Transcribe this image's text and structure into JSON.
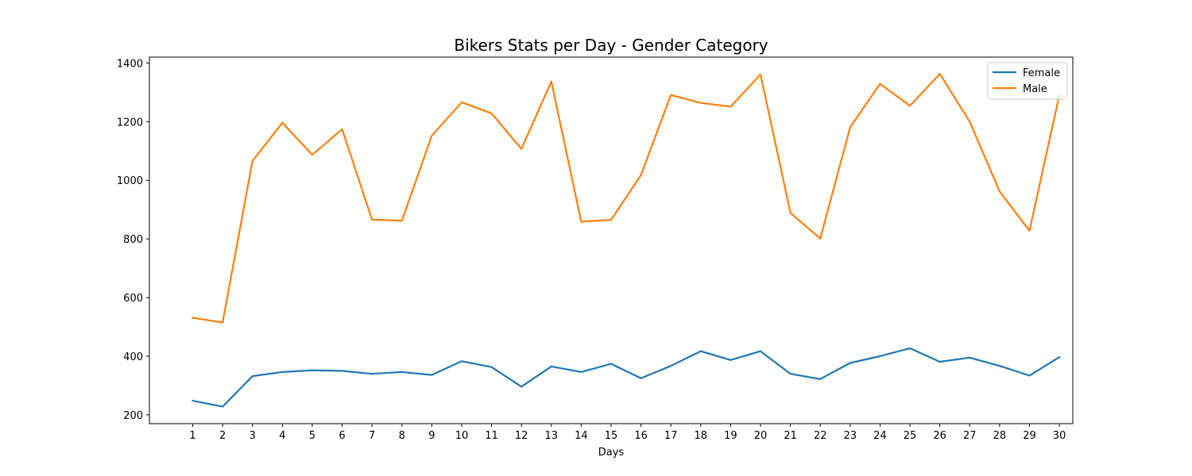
{
  "chart_data": {
    "type": "line",
    "title": "Bikers Stats per Day - Gender Category",
    "xlabel": "Days",
    "ylabel": "",
    "x": [
      1,
      2,
      3,
      4,
      5,
      6,
      7,
      8,
      9,
      10,
      11,
      12,
      13,
      14,
      15,
      16,
      17,
      18,
      19,
      20,
      21,
      22,
      23,
      24,
      25,
      26,
      27,
      28,
      29,
      30
    ],
    "xticks": [
      "1",
      "2",
      "3",
      "4",
      "5",
      "6",
      "7",
      "8",
      "9",
      "10",
      "11",
      "12",
      "13",
      "14",
      "15",
      "16",
      "17",
      "18",
      "19",
      "20",
      "21",
      "22",
      "23",
      "24",
      "25",
      "26",
      "27",
      "28",
      "29",
      "30"
    ],
    "yticks": [
      200,
      400,
      600,
      800,
      1000,
      1200,
      1400
    ],
    "xlim": [
      -0.45,
      30.45
    ],
    "ylim": [
      170,
      1420
    ],
    "grid": false,
    "legend_position": "top-right",
    "series": [
      {
        "name": "Female",
        "color": "#1f77b4",
        "values": [
          248,
          228,
          332,
          346,
          352,
          350,
          340,
          346,
          336,
          383,
          363,
          296,
          365,
          346,
          374,
          325,
          367,
          417,
          387,
          417,
          340,
          322,
          377,
          400,
          427,
          381,
          395,
          367,
          334,
          397
        ]
      },
      {
        "name": "Male",
        "color": "#ff7f0e",
        "values": [
          531,
          515,
          1066,
          1196,
          1087,
          1174,
          866,
          862,
          1152,
          1266,
          1228,
          1107,
          1337,
          859,
          865,
          1018,
          1291,
          1264,
          1251,
          1361,
          889,
          801,
          1181,
          1329,
          1254,
          1363,
          1200,
          962,
          828,
          1290
        ]
      }
    ]
  }
}
